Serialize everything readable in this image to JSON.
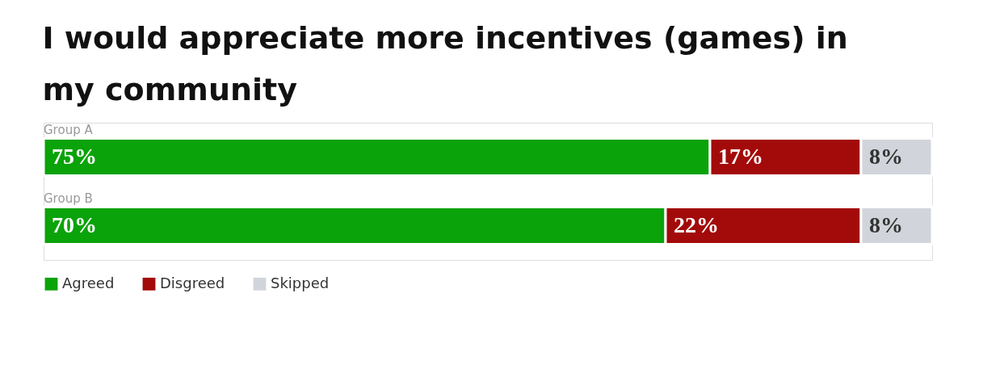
{
  "chart_data": {
    "type": "bar",
    "orientation": "horizontal",
    "stacked": true,
    "title": "I would appreciate more incentives (games) in my community",
    "categories": [
      "Group A",
      "Group B"
    ],
    "series": [
      {
        "name": "Agreed",
        "color": "#0aa30a",
        "values": [
          75,
          70
        ],
        "value_labels": [
          "75%",
          "70%"
        ]
      },
      {
        "name": "Disgreed",
        "color": "#a30a0a",
        "values": [
          17,
          22
        ],
        "value_labels": [
          "17%",
          "22%"
        ]
      },
      {
        "name": "Skipped",
        "color": "#d1d5db",
        "values": [
          8,
          8
        ],
        "value_labels": [
          "8%",
          "8%"
        ]
      }
    ],
    "legend": "bottom left",
    "grid": false
  }
}
